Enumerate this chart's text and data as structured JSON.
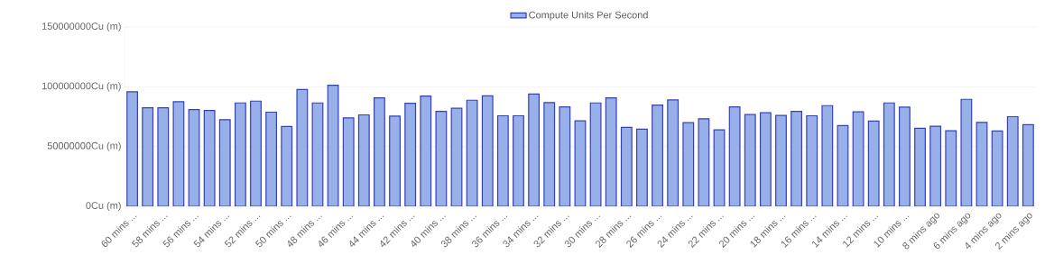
{
  "chart_data": {
    "type": "bar",
    "categories": [
      "60 mins ...",
      null,
      "58 mins ...",
      null,
      "56 mins ...",
      null,
      "54 mins ...",
      null,
      "52 mins ...",
      null,
      "50 mins ...",
      null,
      "48 mins ...",
      null,
      "46 mins ...",
      null,
      "44 mins ...",
      null,
      "42 mins ...",
      null,
      "40 mins ...",
      null,
      "38 mins ...",
      null,
      "36 mins ...",
      null,
      "34 mins ...",
      null,
      "32 mins ...",
      null,
      "30 mins ...",
      null,
      "28 mins ...",
      null,
      "26 mins ...",
      null,
      "24 mins ...",
      null,
      "22 mins ...",
      null,
      "20 mins ...",
      null,
      "18 mins ...",
      null,
      "16 mins ...",
      null,
      "14 mins ...",
      null,
      "12 mins ...",
      null,
      "10 mins ...",
      null,
      "8 mins ago",
      null,
      "6 mins ago",
      null,
      "4 mins ago",
      null,
      "2 mins ago"
    ],
    "series": [
      {
        "name": "Compute Units Per Second",
        "color": "#97b0e8",
        "values": [
          95750000,
          82500000,
          82500000,
          87500000,
          81000000,
          80250000,
          72500000,
          86500000,
          88000000,
          78750000,
          66750000,
          97750000,
          86500000,
          101250000,
          74000000,
          76500000,
          90750000,
          75500000,
          86250000,
          92250000,
          79500000,
          82000000,
          88750000,
          92500000,
          75750000,
          75750000,
          94000000,
          86750000,
          83250000,
          71500000,
          86500000,
          90750000,
          66000000,
          64500000,
          84750000,
          89000000,
          70000000,
          73250000,
          64000000,
          83250000,
          76750000,
          78250000,
          76000000,
          79500000,
          75750000,
          84250000,
          67500000,
          79000000,
          71250000,
          86500000,
          83000000,
          65250000,
          67000000,
          63250000,
          89500000,
          70250000,
          63000000,
          75000000,
          68250000
        ]
      }
    ],
    "ylim": [
      0,
      150000000
    ],
    "yticks": [
      {
        "value": 0,
        "label": "0Cu (m)"
      },
      {
        "value": 50000000,
        "label": "50000000Cu (m)"
      },
      {
        "value": 100000000,
        "label": "100000000Cu (m)"
      },
      {
        "value": 150000000,
        "label": "150000000Cu (m)"
      }
    ],
    "grid": "y",
    "legend": "top"
  }
}
